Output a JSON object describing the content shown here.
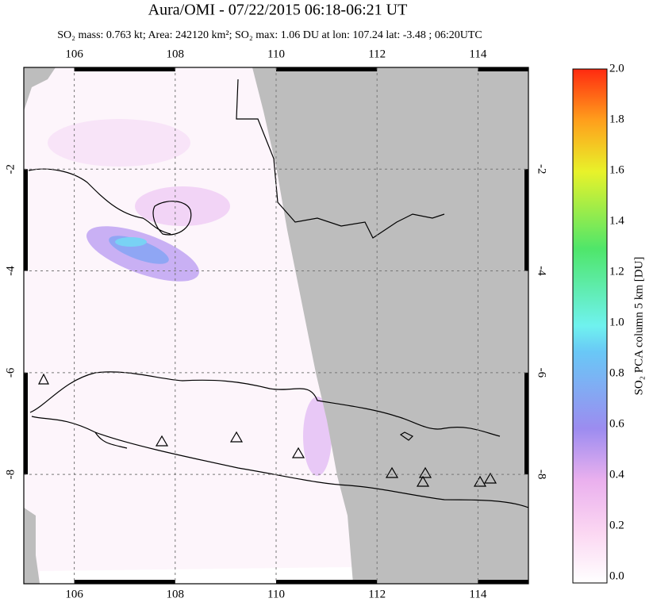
{
  "title": "Aura/OMI - 07/22/2015 06:18-06:21 UT",
  "subtitle": "SO₂ mass: 0.763 kt; Area: 242120 km²; SO₂ max: 1.06 DU at lon: 107.24 lat: -3.48 ; 06:20UTC",
  "map": {
    "xlim": [
      105,
      115
    ],
    "ylim": [
      -10.15,
      0
    ],
    "xticks": [
      106,
      108,
      110,
      112,
      114
    ],
    "yticks": [
      -2,
      -4,
      -6,
      -8
    ],
    "grid": true
  },
  "colorbar": {
    "label": "SO₂ PCA column 5 km [DU]",
    "lim": [
      0,
      2
    ],
    "ticks": [
      {
        "value": 0,
        "label": "0.0"
      },
      {
        "value": 0.2,
        "label": "0.2"
      },
      {
        "value": 0.4,
        "label": "0.4"
      },
      {
        "value": 0.6,
        "label": "0.6"
      },
      {
        "value": 0.8,
        "label": "0.8"
      },
      {
        "value": 1.0,
        "label": "1.0"
      },
      {
        "value": 1.2,
        "label": "1.2"
      },
      {
        "value": 1.4,
        "label": "1.4"
      },
      {
        "value": 1.6,
        "label": "1.6"
      },
      {
        "value": 1.8,
        "label": "1.8"
      },
      {
        "value": 2.0,
        "label": "2.0"
      }
    ]
  }
}
